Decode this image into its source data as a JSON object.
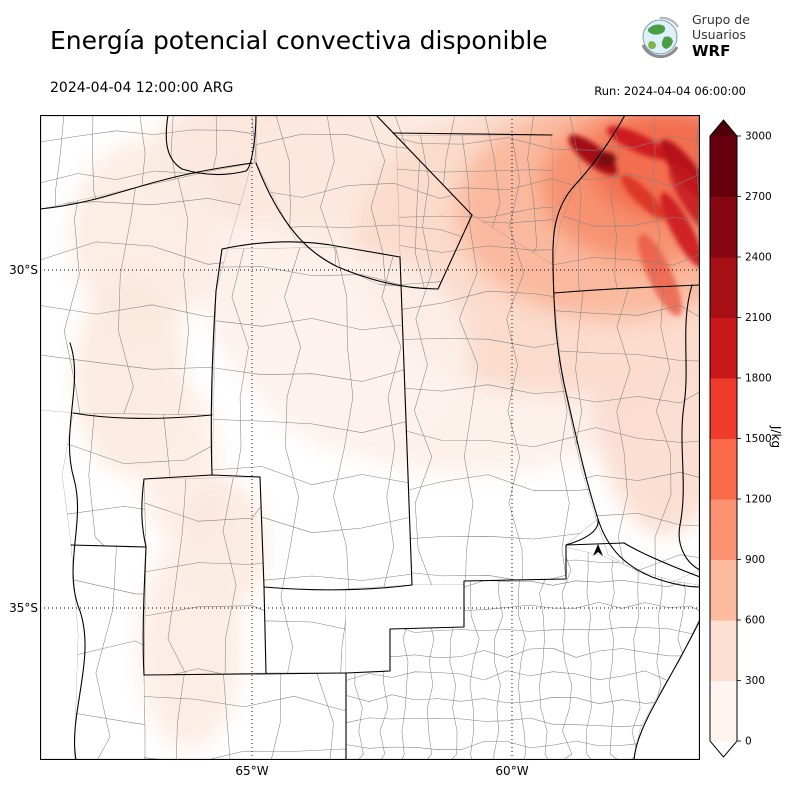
{
  "header": {
    "title": "Energía potencial convectiva disponible",
    "valid_time": "2024-04-04 12:00:00 ARG",
    "run_label": "Run: 2024-04-04 06:00:00",
    "logo": {
      "line1": "Grupo de",
      "line2": "Usuarios",
      "line3": "WRF"
    }
  },
  "map": {
    "x_tick_labels": [
      "65°W",
      "60°W"
    ],
    "y_tick_labels": [
      "30°S",
      "35°S"
    ]
  },
  "colorbar": {
    "unit": "J/kg",
    "tick_values": [
      0,
      300,
      600,
      900,
      1200,
      1500,
      1800,
      2100,
      2400,
      2700,
      3000
    ],
    "segment_colors_low_to_high": [
      "#fff5f0",
      "#fee0d2",
      "#fcbba1",
      "#fc9272",
      "#fb6a4a",
      "#ef3b2c",
      "#cb181d",
      "#a50f15",
      "#840711",
      "#67000d"
    ],
    "under_color": "#ffffff",
    "over_color": "#4f0009"
  },
  "chart_data": {
    "type": "heatmap",
    "title": "Energía potencial convectiva disponible",
    "variable": "CAPE (convective available potential energy)",
    "units": "J/kg",
    "valid_time": "2024-04-04 12:00:00 ARG",
    "run_time": "2024-04-04 06:00:00",
    "contour_levels": [
      0,
      300,
      600,
      900,
      1200,
      1500,
      1800,
      2100,
      2400,
      2700,
      3000
    ],
    "colormap": "white to dark red (Reds), arrows extend both ends",
    "x_ticks": [
      "65°W",
      "60°W"
    ],
    "y_ticks": [
      "30°S",
      "35°S"
    ],
    "pattern_summary": "Maximum CAPE (>2400, locally near 3000 J/kg) over the northeast corner of the domain; values decrease southwestward toward 0 over the center and west; weak patches (<600 J/kg) along the western mountains and the south-central area; Buenos Aires region near 0."
  }
}
